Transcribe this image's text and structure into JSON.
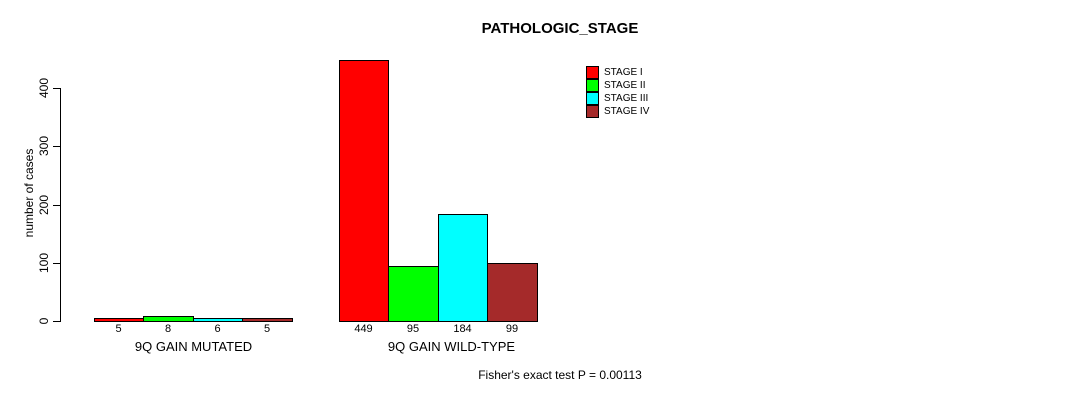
{
  "chart_data": {
    "type": "bar",
    "title": "PATHOLOGIC_STAGE",
    "ylabel": "number of cases",
    "xlabel": "",
    "ylim": [
      0,
      450
    ],
    "yticks": [
      0,
      100,
      200,
      300,
      400
    ],
    "grid": false,
    "legend_position": "top-right",
    "series": [
      {
        "name": "STAGE I",
        "color": "#ff0000"
      },
      {
        "name": "STAGE II",
        "color": "#00ff00"
      },
      {
        "name": "STAGE III",
        "color": "#00ffff"
      },
      {
        "name": "STAGE IV",
        "color": "#a52a2a"
      }
    ],
    "groups": [
      {
        "label": "9Q GAIN MUTATED",
        "values": [
          5,
          8,
          6,
          5
        ]
      },
      {
        "label": "9Q GAIN WILD-TYPE",
        "values": [
          449,
          95,
          184,
          99
        ]
      }
    ],
    "annotation": "Fisher's exact test P = 0.00113"
  }
}
